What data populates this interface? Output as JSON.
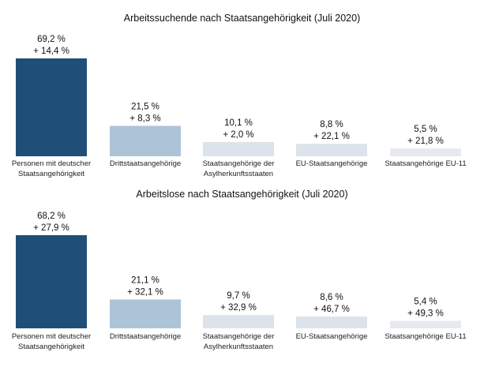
{
  "chart_data": [
    {
      "type": "bar",
      "title": "Arbeitssuchende nach Staatsangehörigkeit (Juli 2020)",
      "categories": [
        [
          "Personen mit deutscher",
          "Staatsangehörigkeit"
        ],
        [
          "Drittstaatsangehörige"
        ],
        [
          "Staatsangehörige der",
          "Asylherkunftsstaaten"
        ],
        [
          "EU-Staatsangehörige"
        ],
        [
          "Staatsangehörige EU-11"
        ]
      ],
      "values": [
        69.2,
        21.5,
        10.1,
        8.8,
        5.5
      ],
      "value_labels": [
        "69,2 %",
        "21,5 %",
        "10,1 %",
        "8,8 %",
        "5,5 %"
      ],
      "change_labels": [
        "+ 14,4 %",
        "+ 8,3 %",
        "+ 2,0 %",
        "+ 22,1 %",
        "+ 21,8 %"
      ],
      "bar_colors": [
        "#1f4e79",
        "#adc3d8",
        "#dde3ea",
        "#dde3ea",
        "#e6e9ed"
      ],
      "xlabel": "",
      "ylabel": "",
      "ylim": [
        0,
        100
      ],
      "grid": false,
      "legend": "none"
    },
    {
      "type": "bar",
      "title": "Arbeitslose nach Staatsangehörigkeit (Juli 2020)",
      "categories": [
        [
          "Personen mit deutscher",
          "Staatsangehörigkeit"
        ],
        [
          "Drittstaatsangehörige"
        ],
        [
          "Staatsangehörige der",
          "Asylherkunftsstaaten"
        ],
        [
          "EU-Staatsangehörige"
        ],
        [
          "Staatsangehörige EU-11"
        ]
      ],
      "values": [
        68.2,
        21.1,
        9.7,
        8.6,
        5.4
      ],
      "value_labels": [
        "68,2 %",
        "21,1 %",
        "9,7 %",
        "8,6 %",
        "5,4 %"
      ],
      "change_labels": [
        "+ 27,9 %",
        "+ 32,1 %",
        "+ 32,9 %",
        "+ 46,7 %",
        "+ 49,3 %"
      ],
      "bar_colors": [
        "#1f4e79",
        "#adc3d8",
        "#dde3ea",
        "#dde3ea",
        "#e6e9ed"
      ],
      "xlabel": "",
      "ylabel": "",
      "ylim": [
        0,
        100
      ],
      "grid": false,
      "legend": "none"
    }
  ]
}
